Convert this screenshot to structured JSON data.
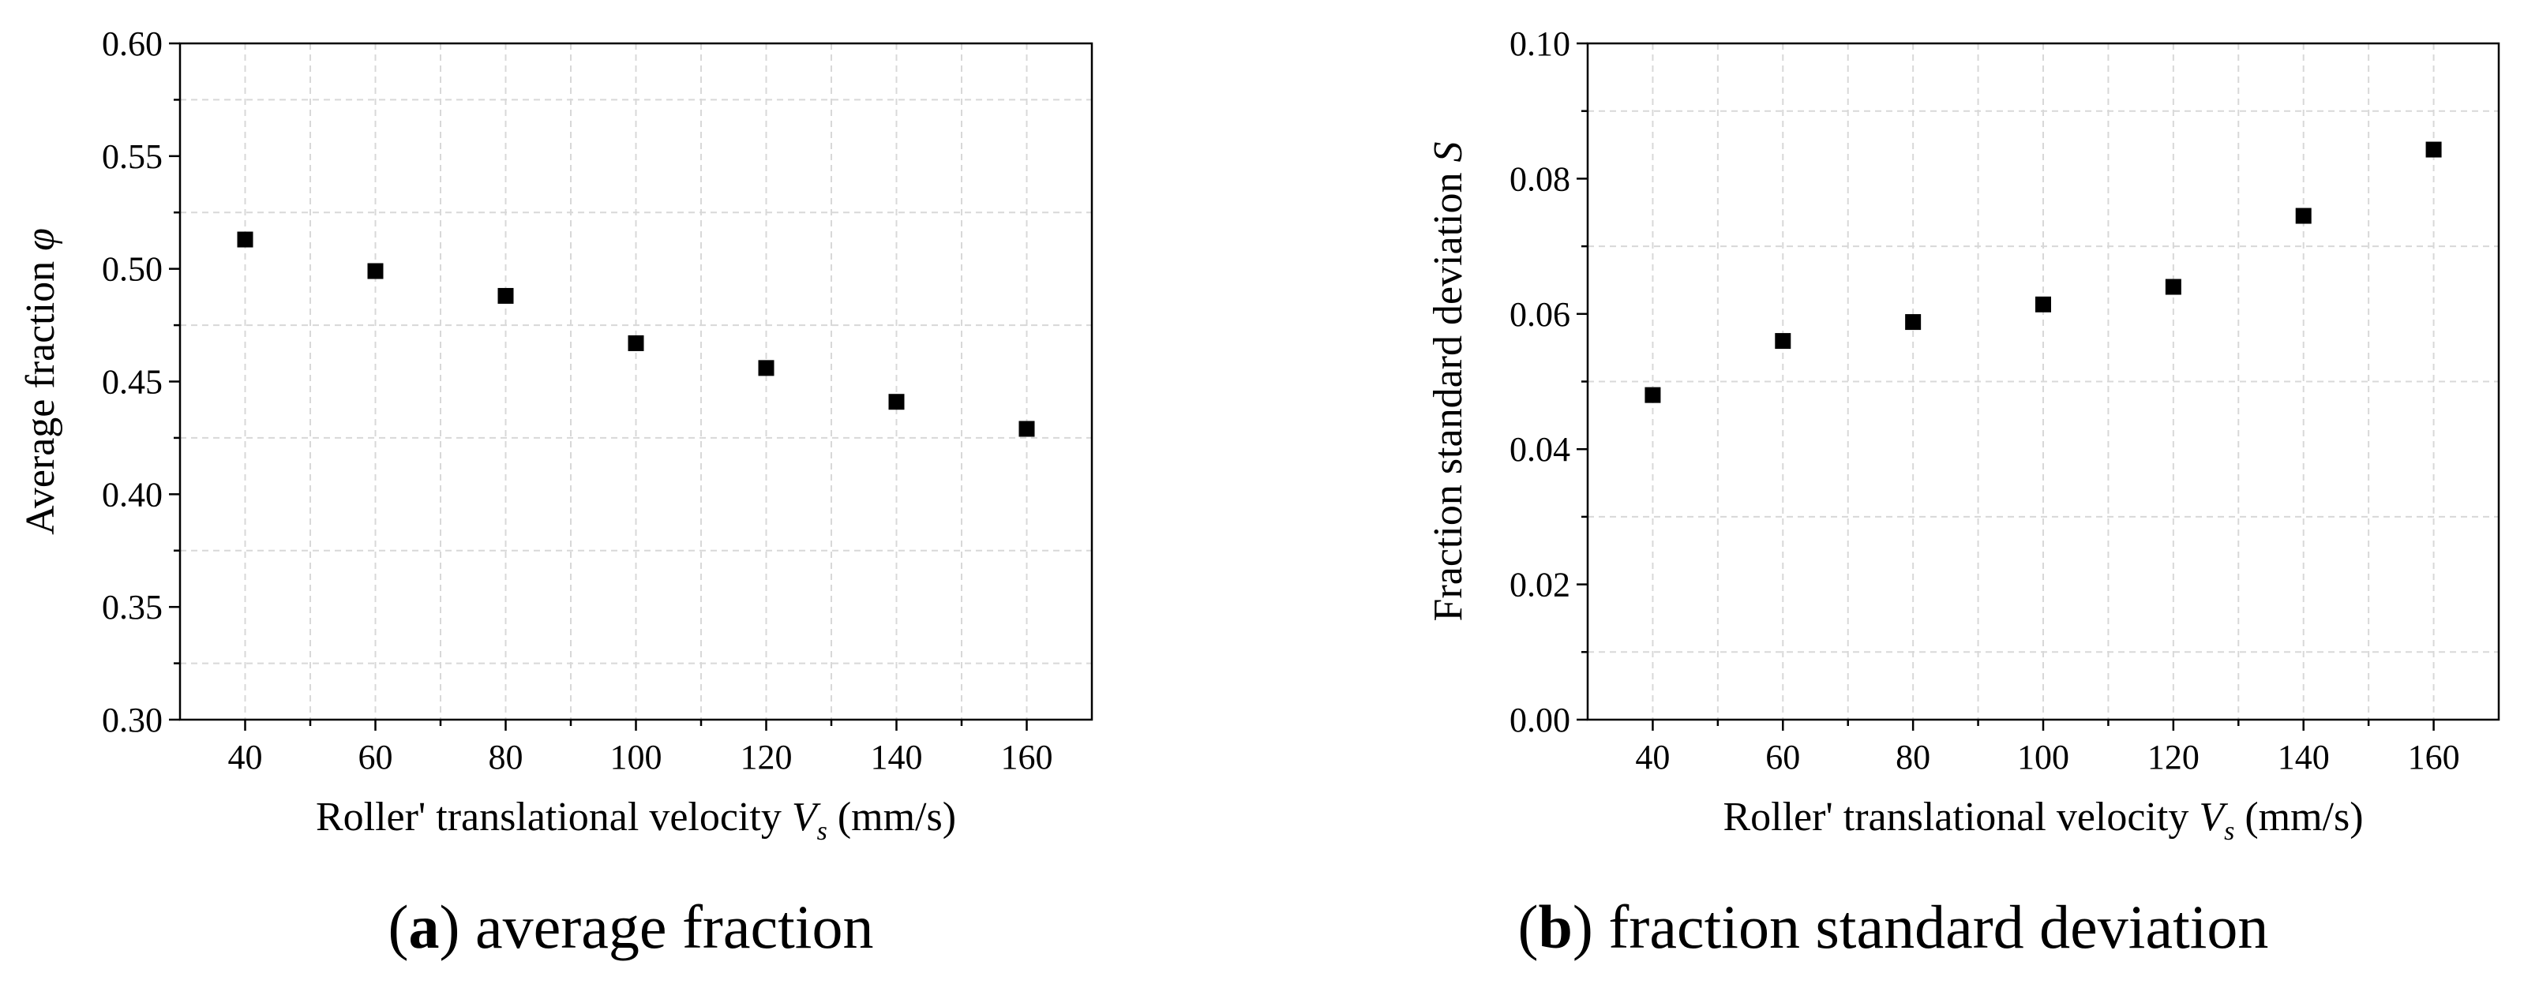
{
  "chart_data": [
    {
      "type": "scatter",
      "panel_id": "a",
      "caption_letter": "a",
      "caption_text": "average fraction",
      "ylabel": "Average fraction φ",
      "xlabel": "Roller' translational velocity V",
      "xlabel_sub": "s",
      "xlabel_unit": " (mm/s)",
      "xlim": [
        30,
        170
      ],
      "ylim": [
        0.3,
        0.6
      ],
      "xticks": [
        40,
        60,
        80,
        100,
        120,
        140,
        160
      ],
      "xtick_labels": [
        "40",
        "60",
        "80",
        "100",
        "120",
        "140",
        "160"
      ],
      "yticks": [
        0.3,
        0.35,
        0.4,
        0.45,
        0.5,
        0.55,
        0.6
      ],
      "ytick_labels": [
        "0.30",
        "0.35",
        "0.40",
        "0.45",
        "0.50",
        "0.55",
        "0.60"
      ],
      "grid": true,
      "marker": "square",
      "color": "#000000",
      "x": [
        40,
        60,
        80,
        100,
        120,
        140,
        160
      ],
      "y": [
        0.513,
        0.499,
        0.488,
        0.467,
        0.456,
        0.441,
        0.429
      ]
    },
    {
      "type": "scatter",
      "panel_id": "b",
      "caption_letter": "b",
      "caption_text": "fraction standard deviation",
      "ylabel": "Fraction standard deviation  S",
      "xlabel": "Roller' translational velocity V",
      "xlabel_sub": "s",
      "xlabel_unit": " (mm/s)",
      "xlim": [
        30,
        170
      ],
      "ylim": [
        0.0,
        0.1
      ],
      "xticks": [
        40,
        60,
        80,
        100,
        120,
        140,
        160
      ],
      "xtick_labels": [
        "40",
        "60",
        "80",
        "100",
        "120",
        "140",
        "160"
      ],
      "yticks": [
        0.0,
        0.02,
        0.04,
        0.06,
        0.08,
        0.1
      ],
      "ytick_labels": [
        "0.00",
        "0.02",
        "0.04",
        "0.06",
        "0.08",
        "0.10"
      ],
      "grid": true,
      "marker": "square",
      "color": "#000000",
      "x": [
        40,
        60,
        80,
        100,
        120,
        140,
        160
      ],
      "y": [
        0.048,
        0.056,
        0.0588,
        0.0614,
        0.064,
        0.0745,
        0.0843
      ]
    }
  ]
}
